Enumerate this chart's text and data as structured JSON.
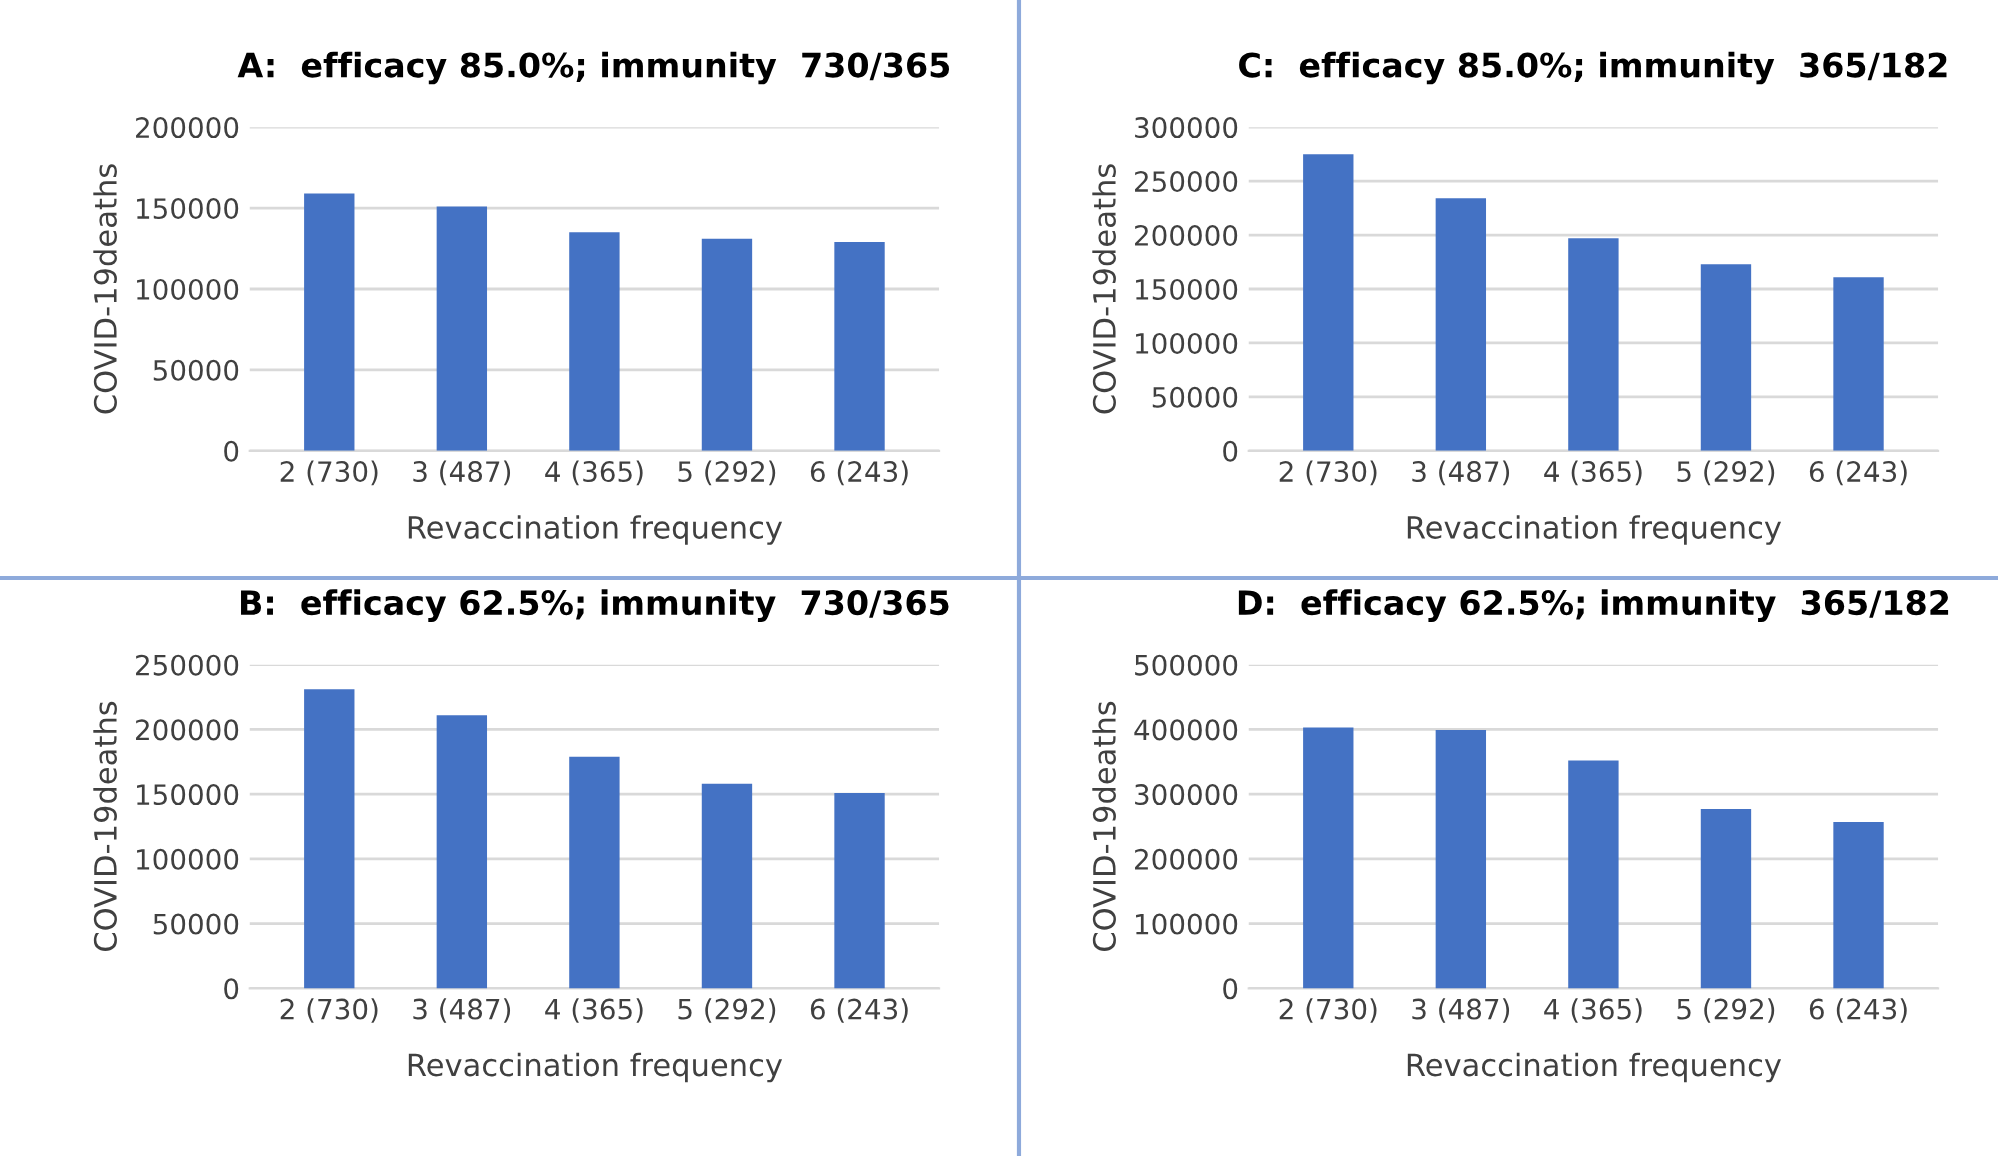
{
  "chart_data": [
    {
      "type": "bar",
      "title": "A:  efficacy 85.0%; immunity  730/365",
      "xlabel": "Revaccination frequency",
      "ylabel": "COVID-19deaths",
      "categories": [
        "2 (730)",
        "3 (487)",
        "4 (365)",
        "5 (292)",
        "6 (243)"
      ],
      "values": [
        159000,
        151000,
        135000,
        131000,
        129000
      ],
      "color": "#4472c4",
      "ylim": [
        0,
        200000
      ],
      "yticks": [
        0,
        50000,
        100000,
        150000,
        200000
      ],
      "grid": "y",
      "legend": false
    },
    {
      "type": "bar",
      "title": "C:  efficacy 85.0%; immunity  365/182",
      "xlabel": "Revaccination frequency",
      "ylabel": "COVID-19deaths",
      "categories": [
        "2 (730)",
        "3 (487)",
        "4 (365)",
        "5 (292)",
        "6 (243)"
      ],
      "values": [
        275000,
        234000,
        197000,
        173000,
        161000
      ],
      "color": "#4472c4",
      "ylim": [
        0,
        300000
      ],
      "yticks": [
        0,
        50000,
        100000,
        150000,
        200000,
        250000,
        300000
      ],
      "grid": "y",
      "legend": false
    },
    {
      "type": "bar",
      "title": "B:  efficacy 62.5%; immunity  730/365",
      "xlabel": "Revaccination frequency",
      "ylabel": "COVID-19deaths",
      "categories": [
        "2 (730)",
        "3 (487)",
        "4 (365)",
        "5 (292)",
        "6 (243)"
      ],
      "values": [
        231000,
        211000,
        179000,
        158000,
        151000
      ],
      "color": "#4472c4",
      "ylim": [
        0,
        250000
      ],
      "yticks": [
        0,
        50000,
        100000,
        150000,
        200000,
        250000
      ],
      "grid": "y",
      "legend": false
    },
    {
      "type": "bar",
      "title": "D:  efficacy 62.5%; immunity  365/182",
      "xlabel": "Revaccination frequency",
      "ylabel": "COVID-19deaths",
      "categories": [
        "2 (730)",
        "3 (487)",
        "4 (365)",
        "5 (292)",
        "6 (243)"
      ],
      "values": [
        403000,
        399000,
        352000,
        277000,
        257000
      ],
      "color": "#4472c4",
      "ylim": [
        0,
        500000
      ],
      "yticks": [
        0,
        100000,
        200000,
        300000,
        400000,
        500000
      ],
      "grid": "y",
      "legend": false
    }
  ]
}
